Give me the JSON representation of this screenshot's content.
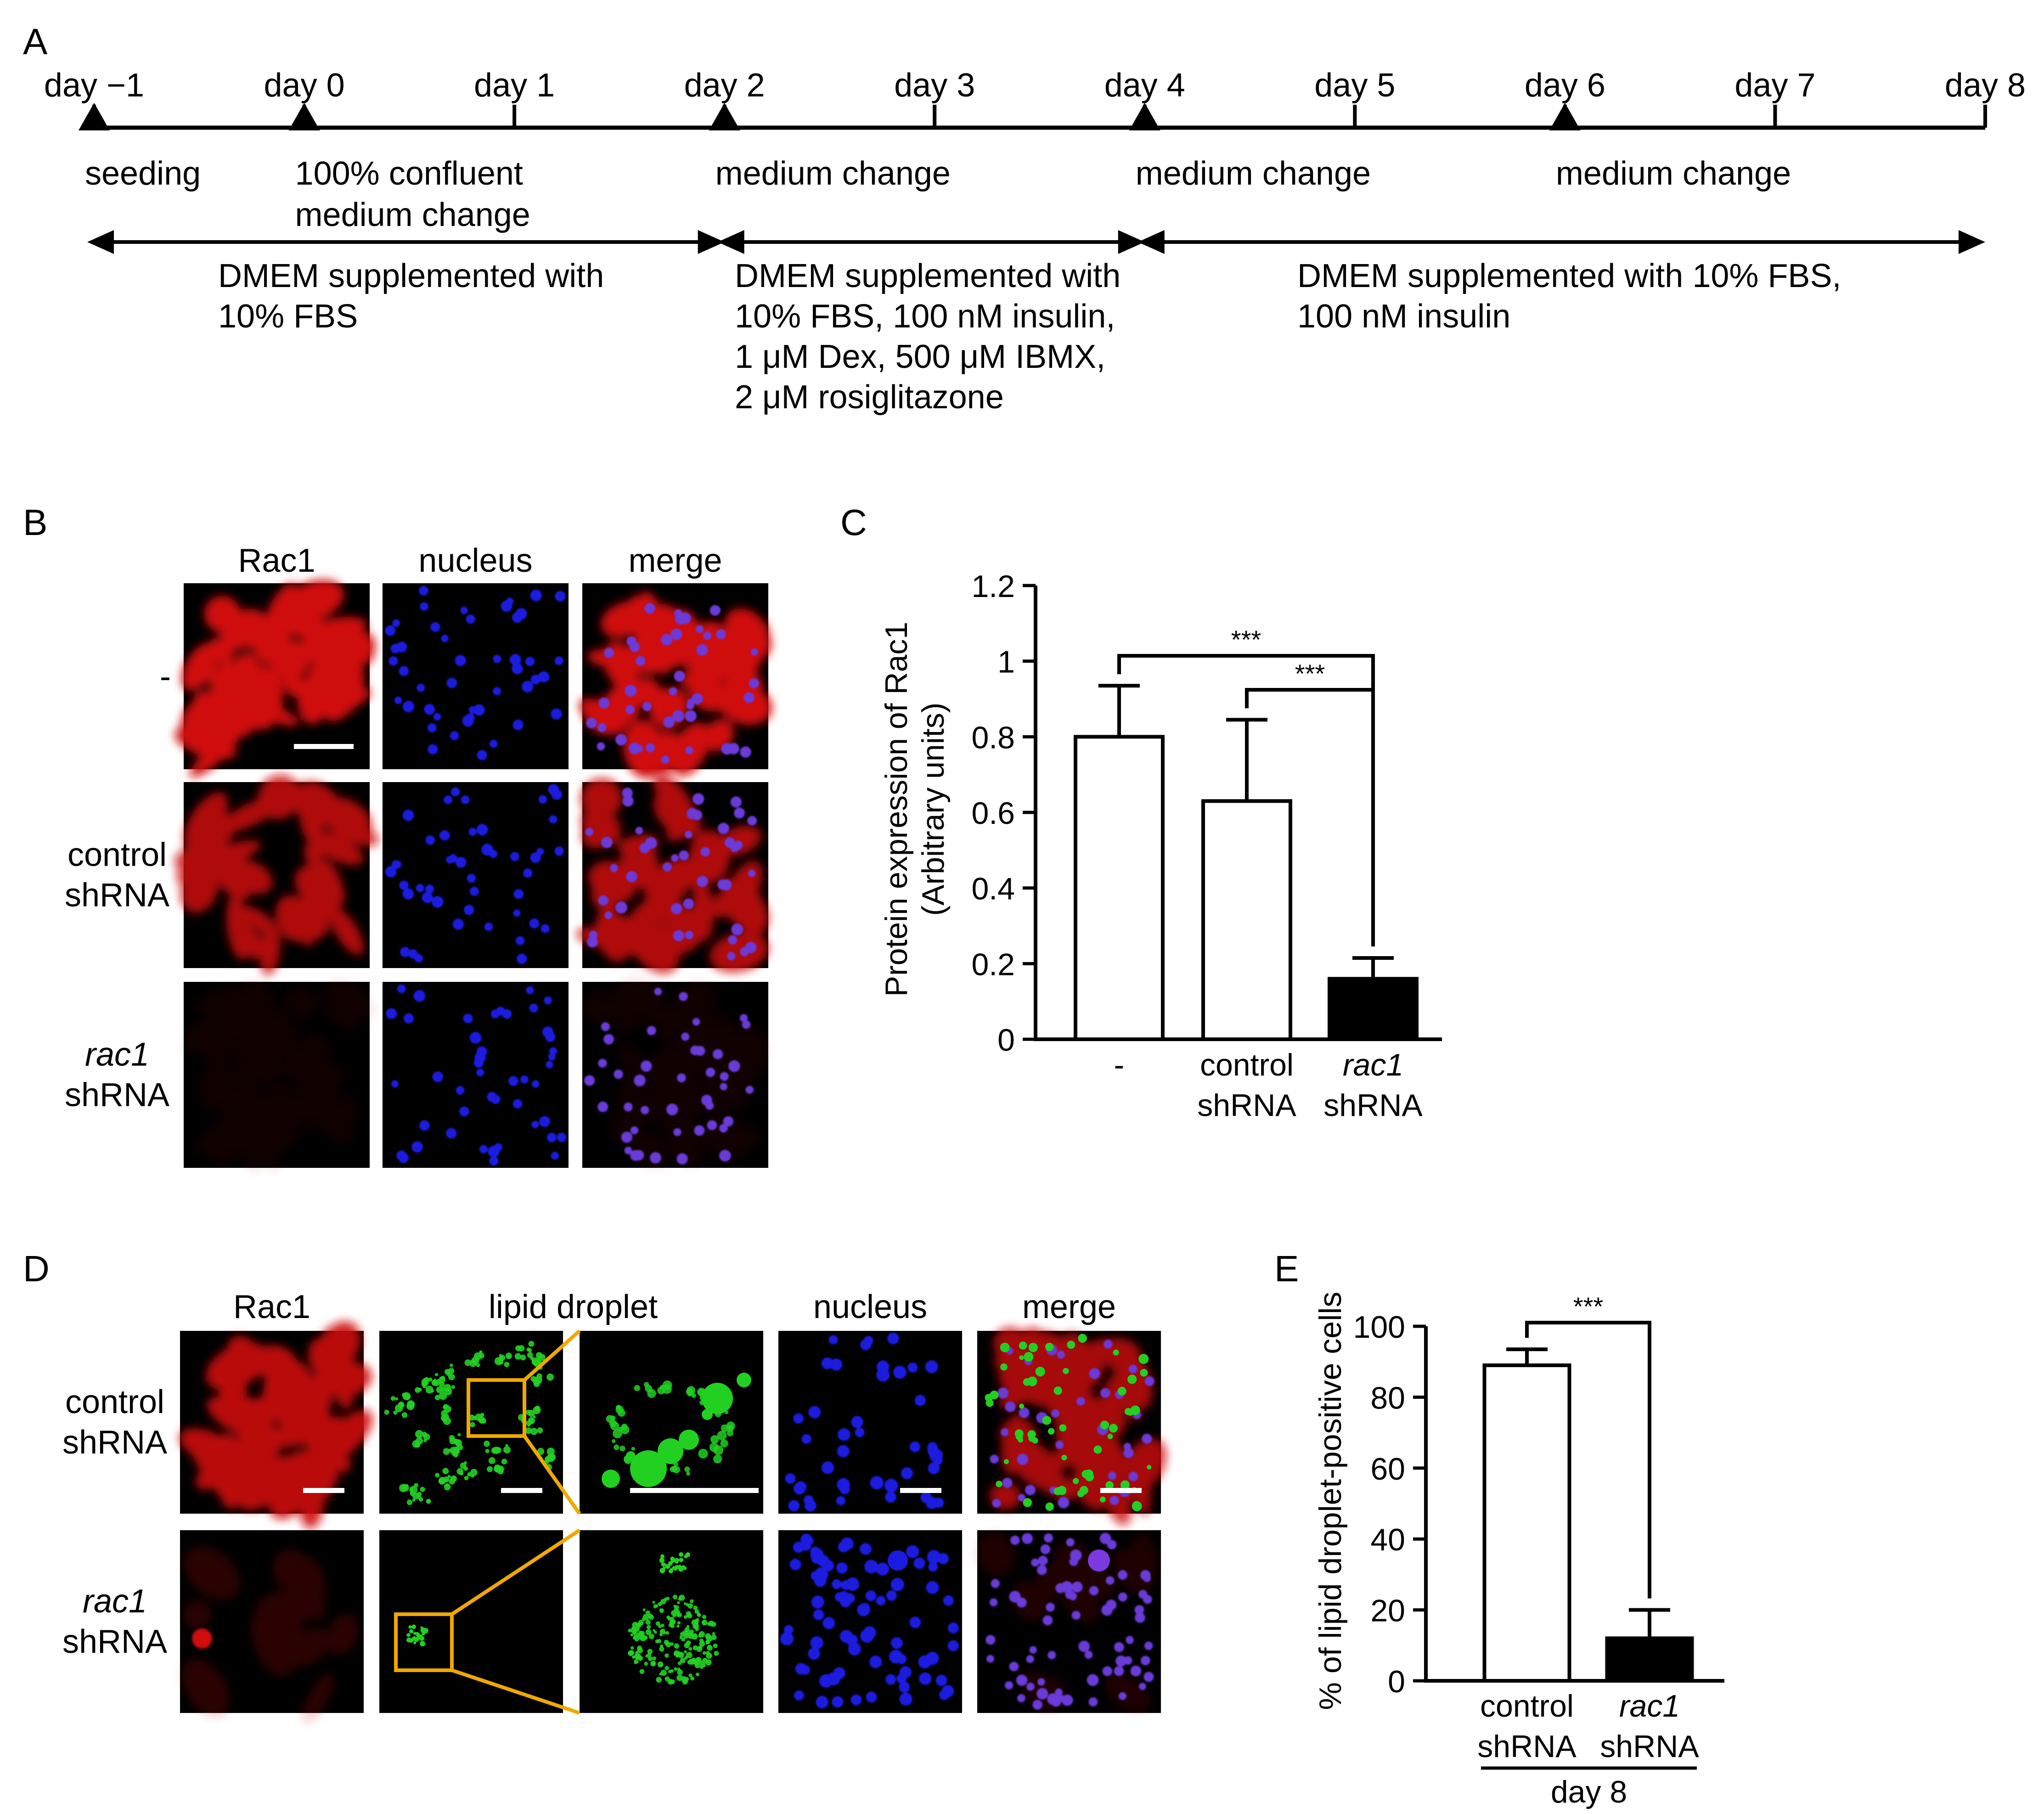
{
  "panels": {
    "A": {
      "letter": "A",
      "days": [
        "day −1",
        "day 0",
        "day 1",
        "day 2",
        "day 3",
        "day 4",
        "day 5",
        "day 6",
        "day 7",
        "day 8"
      ],
      "markers": [
        {
          "day_index": 0,
          "lines": [
            "seeding"
          ]
        },
        {
          "day_index": 1,
          "lines": [
            "100% confluent",
            "medium change"
          ]
        },
        {
          "day_index": 3,
          "lines": [
            "medium change"
          ]
        },
        {
          "day_index": 5,
          "lines": [
            "medium change"
          ]
        },
        {
          "day_index": 7,
          "lines": [
            "medium change"
          ]
        }
      ],
      "phases": [
        {
          "from_day_index": 0,
          "to_day_index": 3,
          "lines": [
            "DMEM supplemented with",
            "10% FBS"
          ]
        },
        {
          "from_day_index": 3,
          "to_day_index": 5,
          "lines": [
            "DMEM supplemented with",
            "10% FBS, 100 nM insulin,",
            "1 μM Dex, 500 μM IBMX,",
            "2 μM rosiglitazone"
          ]
        },
        {
          "from_day_index": 5,
          "to_day_index": 9,
          "lines": [
            "DMEM supplemented with 10% FBS,",
            "100 nM insulin"
          ]
        }
      ]
    },
    "B": {
      "letter": "B",
      "columns": [
        "Rac1",
        "nucleus",
        "merge"
      ],
      "rows": [
        {
          "lines": [
            "-"
          ],
          "italic_first": false
        },
        {
          "lines": [
            "control",
            "shRNA"
          ],
          "italic_first": false
        },
        {
          "lines": [
            "rac1",
            "shRNA"
          ],
          "italic_first": true
        }
      ],
      "colors": {
        "rac1": "#d01010",
        "nucleus": "#1a1ae0",
        "lipid": "#22d022",
        "zoom_box": "#f0a800"
      }
    },
    "C": {
      "letter": "C",
      "chart_data": {
        "type": "bar",
        "ylabel": [
          "Protein expression of Rac1",
          "(Arbitrary units)"
        ],
        "ylim": [
          0,
          1.2
        ],
        "yticks": [
          "0",
          "0.2",
          "0.4",
          "0.6",
          "0.8",
          "1",
          "1.2"
        ],
        "categories": [
          {
            "lines": [
              "-"
            ],
            "italic_first": false
          },
          {
            "lines": [
              "control",
              "shRNA"
            ],
            "italic_first": false
          },
          {
            "lines": [
              "rac1",
              "shRNA"
            ],
            "italic_first": true
          }
        ],
        "values": [
          0.8,
          0.63,
          0.16
        ],
        "errors": [
          0.135,
          0.215,
          0.055
        ],
        "fills": [
          "#ffffff",
          "#ffffff",
          "#000000"
        ],
        "significance": [
          {
            "from": 0,
            "to": 2,
            "label": "***"
          },
          {
            "from": 1,
            "to": 2,
            "label": "***"
          }
        ]
      }
    },
    "D": {
      "letter": "D",
      "columns": [
        "Rac1",
        "lipid droplet",
        "nucleus",
        "merge"
      ],
      "rows": [
        {
          "lines": [
            "control",
            "shRNA"
          ],
          "italic_first": false
        },
        {
          "lines": [
            "rac1",
            "shRNA"
          ],
          "italic_first": true
        }
      ]
    },
    "E": {
      "letter": "E",
      "chart_data": {
        "type": "bar",
        "ylabel": [
          "% of lipid droplet-positive cells"
        ],
        "ylim": [
          0,
          100
        ],
        "yticks": [
          "0",
          "20",
          "40",
          "60",
          "80",
          "100"
        ],
        "categories": [
          {
            "lines": [
              "control",
              "shRNA"
            ],
            "italic_first": false
          },
          {
            "lines": [
              "rac1",
              "shRNA"
            ],
            "italic_first": true
          }
        ],
        "values": [
          89,
          12
        ],
        "errors": [
          4.5,
          8
        ],
        "fills": [
          "#ffffff",
          "#000000"
        ],
        "significance": [
          {
            "from": 0,
            "to": 1,
            "label": "***"
          }
        ],
        "group_label": "day 8"
      }
    }
  }
}
